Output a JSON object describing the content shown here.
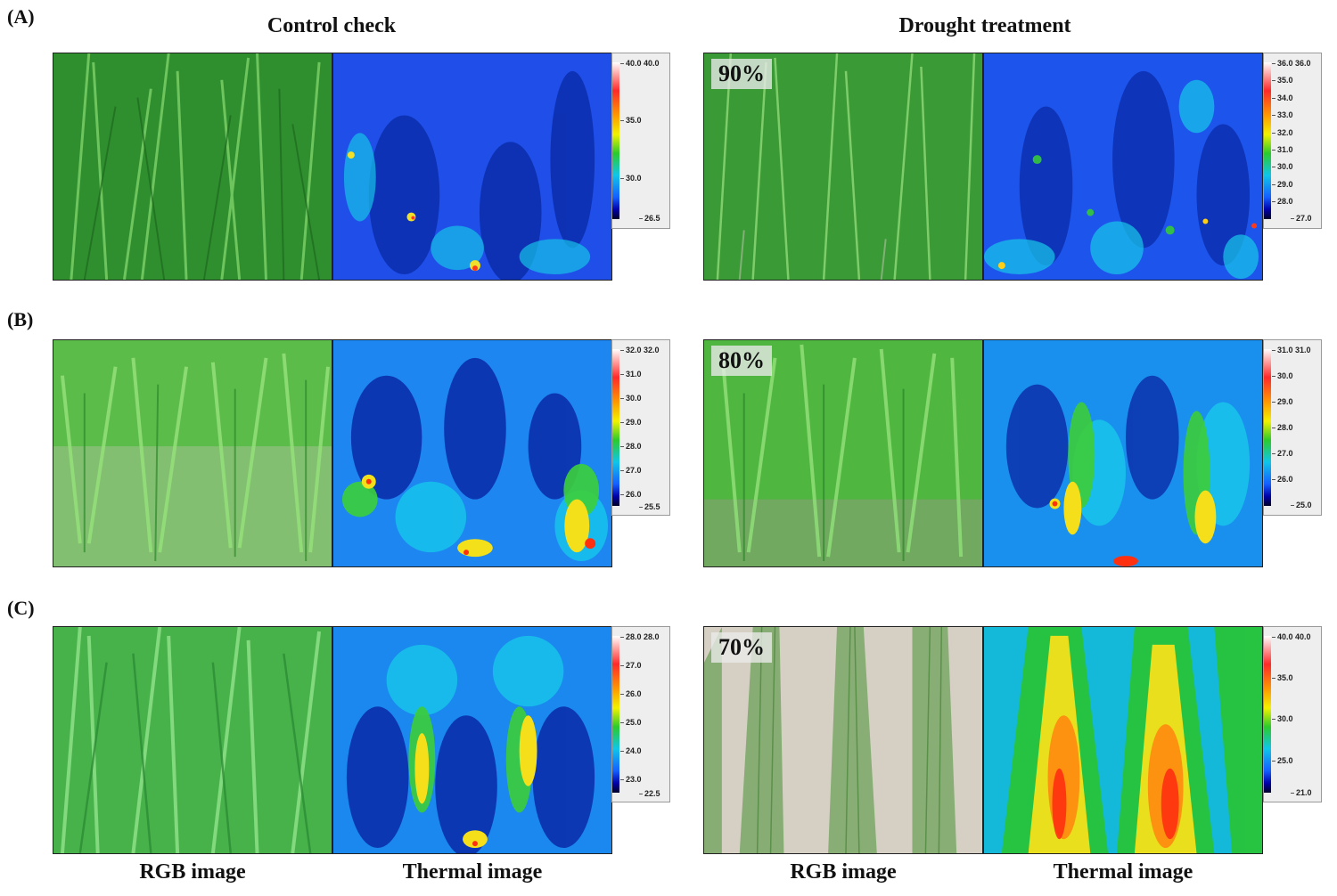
{
  "column_titles": {
    "control": "Control check",
    "drought": "Drought treatment"
  },
  "bottom_labels": [
    "RGB image",
    "Thermal image",
    "RGB image",
    "Thermal image"
  ],
  "rows": [
    {
      "label": "(A)",
      "treatment_percent": "90%",
      "control_scale": {
        "max_pair": "40.0 40.0",
        "ticks": [
          "35.0",
          "30.0"
        ],
        "min": "26.5"
      },
      "drought_scale": {
        "max_pair": "36.0 36.0",
        "ticks": [
          "35.0",
          "34.0",
          "33.0",
          "32.0",
          "31.0",
          "30.0",
          "29.0",
          "28.0"
        ],
        "min": "27.0"
      }
    },
    {
      "label": "(B)",
      "treatment_percent": "80%",
      "control_scale": {
        "max_pair": "32.0 32.0",
        "ticks": [
          "31.0",
          "30.0",
          "29.0",
          "28.0",
          "27.0",
          "26.0"
        ],
        "min": "25.5"
      },
      "drought_scale": {
        "max_pair": "31.0 31.0",
        "ticks": [
          "30.0",
          "29.0",
          "28.0",
          "27.0",
          "26.0"
        ],
        "min": "25.0"
      }
    },
    {
      "label": "(C)",
      "treatment_percent": "70%",
      "control_scale": {
        "max_pair": "28.0 28.0",
        "ticks": [
          "27.0",
          "26.0",
          "25.0",
          "24.0",
          "23.0"
        ],
        "min": "22.5"
      },
      "drought_scale": {
        "max_pair": "40.0 40.0",
        "ticks": [
          "35.0",
          "30.0",
          "25.0"
        ],
        "min": "21.0"
      }
    }
  ],
  "colors": {
    "vegetation": "#3fae3a",
    "soil": "#d8d2c6",
    "thermal_cool": "#1a4fe0",
    "thermal_mid": "#12c7e6",
    "thermal_hot": "#ff2a00"
  }
}
